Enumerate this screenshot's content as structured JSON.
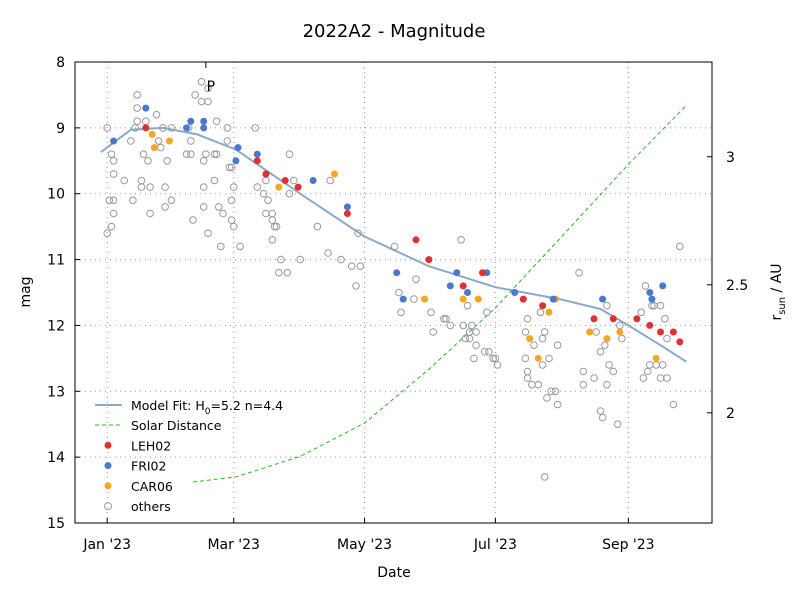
{
  "chart_data": {
    "type": "scatter",
    "title": "2022A2 - Magnitude",
    "xlabel": "Date",
    "ylabel": "mag",
    "y2label_main": "r",
    "y2label_sub": "sun",
    "y2label_unit": " / AU",
    "xlim": [
      "2022-12-17",
      "2023-10-10"
    ],
    "ylim": [
      15,
      8
    ],
    "y2lim": [
      1.57,
      3.37
    ],
    "grid": true,
    "legend_placement": "bottom-left",
    "x_ticks": [
      {
        "date": "2023-01-01",
        "label": "Jan '23"
      },
      {
        "date": "2023-03-01",
        "label": "Mar '23"
      },
      {
        "date": "2023-05-01",
        "label": "May '23"
      },
      {
        "date": "2023-07-01",
        "label": "Jul '23"
      },
      {
        "date": "2023-09-01",
        "label": "Sep '23"
      }
    ],
    "y_ticks": [
      "8",
      "9",
      "10",
      "11",
      "12",
      "13",
      "14",
      "15"
    ],
    "y2_ticks": [
      "2",
      "2.5",
      "3"
    ],
    "annotation": {
      "label": "P",
      "date": "2023-02-16"
    },
    "colors": {
      "model": "#8aaac8",
      "solar": "#22bb22",
      "LEH02": "#e03030",
      "FRI02": "#4a78d0",
      "CAR06": "#f5a623",
      "others": "#999999"
    },
    "model_fit": {
      "label_main": "Model Fit: H",
      "label_sub": "0",
      "label_rest": "=5.2 n=4.4",
      "points": [
        [
          "2022-12-29",
          9.37
        ],
        [
          "2023-01-12",
          9.03
        ],
        [
          "2023-01-27",
          9.0
        ],
        [
          "2023-02-12",
          9.1
        ],
        [
          "2023-03-02",
          9.33
        ],
        [
          "2023-04-01",
          10.0
        ],
        [
          "2023-05-01",
          10.65
        ],
        [
          "2023-05-31",
          11.1
        ],
        [
          "2023-07-01",
          11.42
        ],
        [
          "2023-07-31",
          11.6
        ],
        [
          "2023-08-19",
          11.75
        ],
        [
          "2023-09-01",
          12.0
        ],
        [
          "2023-09-16",
          12.3
        ],
        [
          "2023-09-28",
          12.55
        ]
      ]
    },
    "solar_distance": {
      "label": "Solar Distance",
      "points": [
        [
          "2023-02-10",
          1.73
        ],
        [
          "2023-03-02",
          1.75
        ],
        [
          "2023-04-01",
          1.83
        ],
        [
          "2023-05-01",
          1.96
        ],
        [
          "2023-05-31",
          2.17
        ],
        [
          "2023-07-01",
          2.41
        ],
        [
          "2023-07-31",
          2.68
        ],
        [
          "2023-09-01",
          2.97
        ],
        [
          "2023-09-28",
          3.2
        ]
      ]
    },
    "series": [
      {
        "name": "LEH02",
        "points": [
          [
            "2023-01-19",
            9.0
          ],
          [
            "2023-03-12",
            9.5
          ],
          [
            "2023-03-16",
            9.7
          ],
          [
            "2023-03-25",
            9.8
          ],
          [
            "2023-03-31",
            9.9
          ],
          [
            "2023-04-23",
            10.3
          ],
          [
            "2023-05-25",
            10.7
          ],
          [
            "2023-05-31",
            11.0
          ],
          [
            "2023-06-16",
            11.4
          ],
          [
            "2023-06-25",
            11.2
          ],
          [
            "2023-07-14",
            11.6
          ],
          [
            "2023-07-23",
            11.7
          ],
          [
            "2023-08-16",
            11.9
          ],
          [
            "2023-08-25",
            11.9
          ],
          [
            "2023-09-05",
            11.9
          ],
          [
            "2023-09-11",
            12.0
          ],
          [
            "2023-09-16",
            12.1
          ],
          [
            "2023-09-22",
            12.1
          ],
          [
            "2023-09-25",
            12.25
          ]
        ]
      },
      {
        "name": "FRI02",
        "points": [
          [
            "2023-01-04",
            9.2
          ],
          [
            "2023-01-19",
            8.7
          ],
          [
            "2023-02-07",
            9.0
          ],
          [
            "2023-02-09",
            8.9
          ],
          [
            "2023-02-15",
            8.9
          ],
          [
            "2023-02-15",
            9.0
          ],
          [
            "2023-03-02",
            9.5
          ],
          [
            "2023-03-03",
            9.3
          ],
          [
            "2023-03-12",
            9.4
          ],
          [
            "2023-04-07",
            9.8
          ],
          [
            "2023-04-23",
            10.2
          ],
          [
            "2023-05-16",
            11.2
          ],
          [
            "2023-05-19",
            11.6
          ],
          [
            "2023-06-10",
            11.4
          ],
          [
            "2023-06-13",
            11.2
          ],
          [
            "2023-06-18",
            11.5
          ],
          [
            "2023-06-27",
            11.2
          ],
          [
            "2023-07-10",
            11.5
          ],
          [
            "2023-07-28",
            11.6
          ],
          [
            "2023-08-20",
            11.6
          ],
          [
            "2023-09-11",
            11.5
          ],
          [
            "2023-09-12",
            11.6
          ],
          [
            "2023-09-17",
            11.4
          ]
        ]
      },
      {
        "name": "CAR06",
        "points": [
          [
            "2023-01-22",
            9.1
          ],
          [
            "2023-01-23",
            9.3
          ],
          [
            "2023-01-30",
            9.2
          ],
          [
            "2023-03-22",
            9.9
          ],
          [
            "2023-04-17",
            9.7
          ],
          [
            "2023-05-29",
            11.6
          ],
          [
            "2023-06-16",
            11.6
          ],
          [
            "2023-06-23",
            11.6
          ],
          [
            "2023-07-29",
            11.6
          ],
          [
            "2023-07-26",
            11.8
          ],
          [
            "2023-07-17",
            12.2
          ],
          [
            "2023-07-21",
            12.5
          ],
          [
            "2023-08-14",
            12.1
          ],
          [
            "2023-08-22",
            12.2
          ],
          [
            "2023-08-28",
            12.1
          ],
          [
            "2023-09-14",
            12.5
          ]
        ]
      },
      {
        "name": "others",
        "points": [
          [
            "2023-01-01",
            9.0
          ],
          [
            "2023-01-02",
            10.1
          ],
          [
            "2023-01-01",
            10.6
          ],
          [
            "2023-01-03",
            10.5
          ],
          [
            "2023-01-03",
            9.4
          ],
          [
            "2023-01-04",
            9.5
          ],
          [
            "2023-01-04",
            9.7
          ],
          [
            "2023-01-04",
            10.1
          ],
          [
            "2023-01-04",
            10.3
          ],
          [
            "2023-01-09",
            9.8
          ],
          [
            "2023-01-12",
            9.2
          ],
          [
            "2023-01-14",
            9.0
          ],
          [
            "2023-01-15",
            8.5
          ],
          [
            "2023-01-15",
            8.7
          ],
          [
            "2023-01-17",
            9.9
          ],
          [
            "2023-01-17",
            9.8
          ],
          [
            "2023-01-18",
            9.4
          ],
          [
            "2023-01-20",
            9.5
          ],
          [
            "2023-01-21",
            9.9
          ],
          [
            "2023-01-15",
            8.9
          ],
          [
            "2023-01-19",
            8.9
          ],
          [
            "2023-01-21",
            10.3
          ],
          [
            "2023-01-13",
            10.1
          ],
          [
            "2023-01-24",
            8.8
          ],
          [
            "2023-01-25",
            9.2
          ],
          [
            "2023-01-26",
            9.3
          ],
          [
            "2023-01-27",
            9.0
          ],
          [
            "2023-01-28",
            9.9
          ],
          [
            "2023-01-28",
            10.2
          ],
          [
            "2023-01-31",
            9.0
          ],
          [
            "2023-01-31",
            10.1
          ],
          [
            "2023-01-29",
            9.5
          ],
          [
            "2023-02-07",
            9.4
          ],
          [
            "2023-02-09",
            9.4
          ],
          [
            "2023-02-08",
            9.0
          ],
          [
            "2023-02-09",
            9.2
          ],
          [
            "2023-02-10",
            10.4
          ],
          [
            "2023-02-11",
            8.5
          ],
          [
            "2023-02-14",
            8.3
          ],
          [
            "2023-02-14",
            8.6
          ],
          [
            "2023-02-17",
            8.6
          ],
          [
            "2023-02-17",
            8.4
          ],
          [
            "2023-02-15",
            9.5
          ],
          [
            "2023-02-16",
            9.4
          ],
          [
            "2023-02-15",
            9.9
          ],
          [
            "2023-02-15",
            10.2
          ],
          [
            "2023-02-17",
            10.6
          ],
          [
            "2023-02-20",
            9.4
          ],
          [
            "2023-02-21",
            9.4
          ],
          [
            "2023-02-21",
            8.9
          ],
          [
            "2023-02-20",
            9.8
          ],
          [
            "2023-02-22",
            10.2
          ],
          [
            "2023-02-24",
            10.3
          ],
          [
            "2023-02-23",
            10.8
          ],
          [
            "2023-02-26",
            9.0
          ],
          [
            "2023-02-26",
            9.2
          ],
          [
            "2023-02-27",
            9.6
          ],
          [
            "2023-02-28",
            9.6
          ],
          [
            "2023-03-01",
            9.9
          ],
          [
            "2023-02-28",
            10.1
          ],
          [
            "2023-02-28",
            10.4
          ],
          [
            "2023-03-01",
            10.5
          ],
          [
            "2023-03-04",
            10.8
          ],
          [
            "2023-03-11",
            9.0
          ],
          [
            "2023-03-12",
            9.9
          ],
          [
            "2023-03-15",
            10.0
          ],
          [
            "2023-03-16",
            9.8
          ],
          [
            "2023-03-16",
            10.3
          ],
          [
            "2023-03-17",
            10.1
          ],
          [
            "2023-03-19",
            10.4
          ],
          [
            "2023-03-20",
            10.5
          ],
          [
            "2023-03-19",
            10.7
          ],
          [
            "2023-03-19",
            10.3
          ],
          [
            "2023-03-21",
            10.5
          ],
          [
            "2023-03-22",
            11.2
          ],
          [
            "2023-03-23",
            11.0
          ],
          [
            "2023-03-26",
            11.2
          ],
          [
            "2023-03-27",
            10.0
          ],
          [
            "2023-03-27",
            9.4
          ],
          [
            "2023-03-29",
            9.8
          ],
          [
            "2023-04-01",
            11.0
          ],
          [
            "2023-04-09",
            10.5
          ],
          [
            "2023-04-14",
            10.9
          ],
          [
            "2023-04-15",
            9.8
          ],
          [
            "2023-04-20",
            11.0
          ],
          [
            "2023-04-25",
            11.1
          ],
          [
            "2023-04-27",
            11.4
          ],
          [
            "2023-04-28",
            10.6
          ],
          [
            "2023-04-29",
            11.1
          ],
          [
            "2023-05-15",
            10.8
          ],
          [
            "2023-05-17",
            11.5
          ],
          [
            "2023-05-18",
            11.8
          ],
          [
            "2023-05-24",
            11.6
          ],
          [
            "2023-05-25",
            11.3
          ],
          [
            "2023-06-01",
            11.8
          ],
          [
            "2023-06-02",
            12.1
          ],
          [
            "2023-06-07",
            11.9
          ],
          [
            "2023-06-08",
            11.9
          ],
          [
            "2023-06-10",
            12.0
          ],
          [
            "2023-06-15",
            10.7
          ],
          [
            "2023-06-16",
            12.0
          ],
          [
            "2023-06-18",
            11.7
          ],
          [
            "2023-06-19",
            12.1
          ],
          [
            "2023-06-20",
            12.0
          ],
          [
            "2023-06-17",
            12.2
          ],
          [
            "2023-06-19",
            12.2
          ],
          [
            "2023-06-22",
            12.1
          ],
          [
            "2023-06-21",
            12.5
          ],
          [
            "2023-06-22",
            12.3
          ],
          [
            "2023-06-27",
            11.8
          ],
          [
            "2023-06-26",
            12.4
          ],
          [
            "2023-06-28",
            12.4
          ],
          [
            "2023-06-30",
            12.5
          ],
          [
            "2023-07-01",
            12.5
          ],
          [
            "2023-07-02",
            12.6
          ],
          [
            "2023-07-15",
            12.1
          ],
          [
            "2023-07-16",
            11.9
          ],
          [
            "2023-07-15",
            12.5
          ],
          [
            "2023-07-16",
            12.7
          ],
          [
            "2023-07-16",
            12.8
          ],
          [
            "2023-07-18",
            12.9
          ],
          [
            "2023-07-19",
            12.3
          ],
          [
            "2023-07-21",
            12.9
          ],
          [
            "2023-07-22",
            11.8
          ],
          [
            "2023-07-23",
            12.2
          ],
          [
            "2023-07-24",
            12.1
          ],
          [
            "2023-07-23",
            12.6
          ],
          [
            "2023-07-25",
            13.1
          ],
          [
            "2023-07-26",
            12.5
          ],
          [
            "2023-07-27",
            13.0
          ],
          [
            "2023-07-29",
            13.0
          ],
          [
            "2023-07-30",
            13.2
          ],
          [
            "2023-07-30",
            12.3
          ],
          [
            "2023-07-24",
            14.3
          ],
          [
            "2023-08-09",
            11.2
          ],
          [
            "2023-08-11",
            12.7
          ],
          [
            "2023-08-11",
            12.9
          ],
          [
            "2023-08-16",
            12.8
          ],
          [
            "2023-08-17",
            12.1
          ],
          [
            "2023-08-19",
            13.3
          ],
          [
            "2023-08-20",
            13.4
          ],
          [
            "2023-08-19",
            12.4
          ],
          [
            "2023-08-21",
            12.3
          ],
          [
            "2023-08-22",
            12.9
          ],
          [
            "2023-08-22",
            11.7
          ],
          [
            "2023-08-23",
            12.6
          ],
          [
            "2023-08-25",
            12.7
          ],
          [
            "2023-08-27",
            13.5
          ],
          [
            "2023-08-28",
            12.0
          ],
          [
            "2023-08-29",
            12.2
          ],
          [
            "2023-09-07",
            11.8
          ],
          [
            "2023-09-09",
            11.4
          ],
          [
            "2023-09-08",
            12.8
          ],
          [
            "2023-09-10",
            12.7
          ],
          [
            "2023-09-11",
            12.6
          ],
          [
            "2023-09-12",
            11.7
          ],
          [
            "2023-09-13",
            11.7
          ],
          [
            "2023-09-14",
            12.6
          ],
          [
            "2023-09-16",
            11.7
          ],
          [
            "2023-09-17",
            12.6
          ],
          [
            "2023-09-18",
            11.9
          ],
          [
            "2023-09-16",
            12.8
          ],
          [
            "2023-09-19",
            12.8
          ],
          [
            "2023-09-19",
            12.2
          ],
          [
            "2023-09-22",
            13.2
          ],
          [
            "2023-09-25",
            10.8
          ]
        ]
      }
    ]
  }
}
